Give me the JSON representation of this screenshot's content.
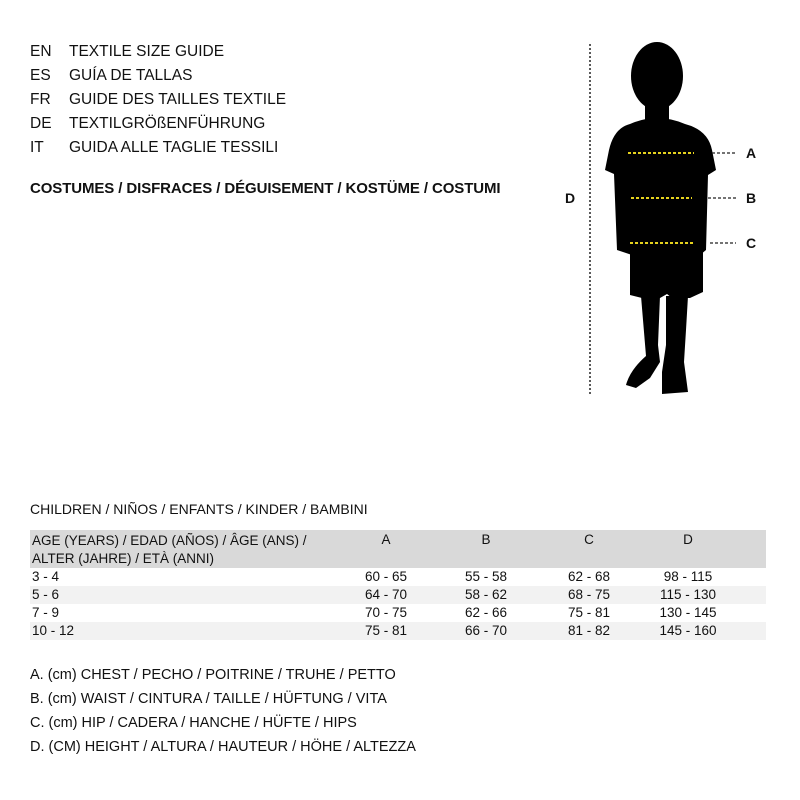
{
  "titles": [
    {
      "code": "EN",
      "text": "TEXTILE SIZE GUIDE"
    },
    {
      "code": "ES",
      "text": "GUÍA DE TALLAS"
    },
    {
      "code": "FR",
      "text": "GUIDE DES TAILLES TEXTILE"
    },
    {
      "code": "DE",
      "text": "TEXTILGRÖßENFÜHRUNG"
    },
    {
      "code": "IT",
      "text": "GUIDA ALLE TAGLIE TESSILI"
    }
  ],
  "category": "COSTUMES / DISFRACES / DÉGUISEMENT / KOSTÜME / COSTUMI",
  "figure": {
    "labels": {
      "a": "A",
      "b": "B",
      "c": "C",
      "d": "D"
    },
    "measure_line_color": "#e6d21e"
  },
  "table": {
    "caption": "CHILDREN / NIÑOS / ENFANTS / KINDER / BAMBINI",
    "headers": {
      "age_line1": "AGE (YEARS) / EDAD (AÑOS) / ÂGE (ANS) /",
      "age_line2": "ALTER (JAHRE) / ETÀ (ANNI)",
      "a": "A",
      "b": "B",
      "c": "C",
      "d": "D"
    },
    "rows": [
      [
        "3 - 4",
        "60 - 65",
        "55 - 58",
        "62 - 68",
        "98 - 115"
      ],
      [
        "5 - 6",
        "64 - 70",
        "58 - 62",
        "68 - 75",
        "115 - 130"
      ],
      [
        "7 - 9",
        "70 - 75",
        "62 - 66",
        "75 - 81",
        "130 - 145"
      ],
      [
        "10 - 12",
        "75 - 81",
        "66 - 70",
        "81 - 82",
        "145 - 160"
      ]
    ]
  },
  "legend": [
    "A. (cm) CHEST / PECHO / POITRINE / TRUHE / PETTO",
    "B. (cm) WAIST / CINTURA / TAILLE / HÜFTUNG / VITA",
    "C. (cm) HIP / CADERA / HANCHE / HÜFTE / HIPS",
    "D. (CM) HEIGHT / ALTURA / HAUTEUR / HÖHE / ALTEZZA"
  ]
}
